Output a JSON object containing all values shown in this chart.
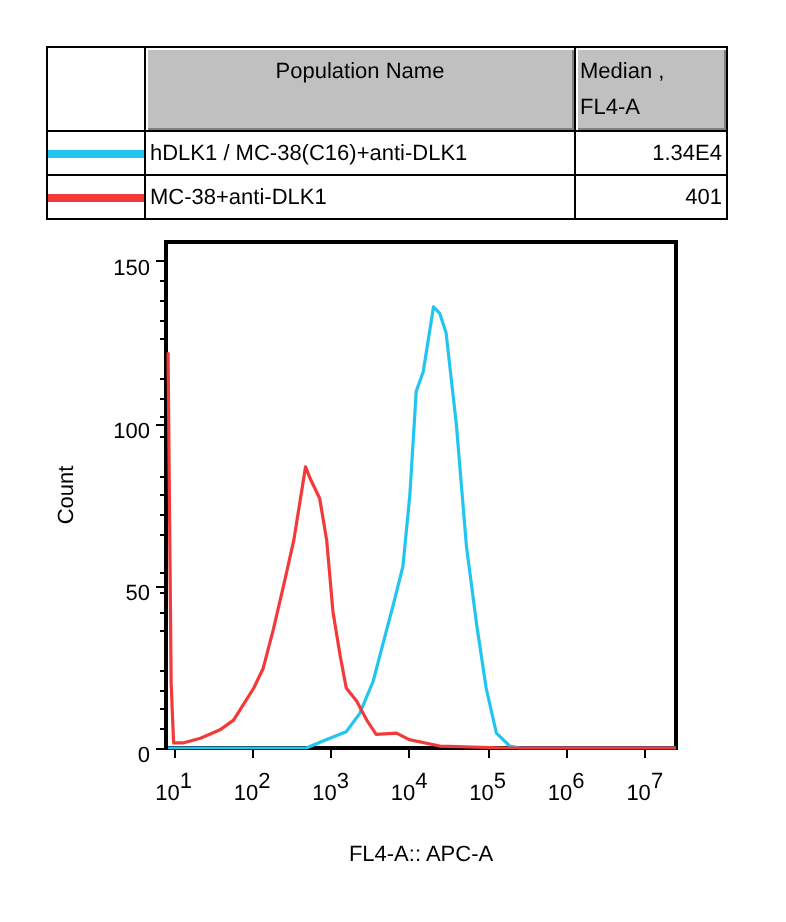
{
  "chart_data": {
    "type": "line",
    "xlabel": "FL4-A:: APC-A",
    "ylabel": "Count",
    "legend": "top",
    "legend_title": "Population Name",
    "annotations": [
      "Median ,\nFL4-A",
      "1.34E4",
      "401"
    ],
    "log": "x",
    "xlim": [
      8,
      25000000
    ],
    "ylim": [
      0,
      156
    ],
    "xticks": [
      {
        "value": 10,
        "label": "10$^{1}$"
      },
      {
        "value": 100,
        "label": "10$^{2}$"
      },
      {
        "value": 1000,
        "label": "10$^{3}$"
      },
      {
        "value": 10000,
        "label": "10$^{4}$"
      },
      {
        "value": 100000,
        "label": "10$^{5}$"
      },
      {
        "value": 1000000,
        "label": "10$^{6}$"
      },
      {
        "value": 10000000,
        "label": "10$^{7}$"
      }
    ],
    "yticks": [
      0,
      50,
      100,
      150
    ],
    "grid": false,
    "marker": "none",
    "line_style": "solid",
    "series": [
      {
        "name": "hDLK1 / MC-38(C16)+anti-DLK1",
        "color": "#22c4f0",
        "x": [
          8.5,
          490,
          890,
          1580,
          2340,
          3470,
          4680,
          6310,
          8320,
          10200,
          12300,
          15100,
          20400,
          24500,
          29500,
          39800,
          53700,
          72400,
          95500,
          129000,
          191000,
          257000,
          25000000
        ],
        "values": [
          0,
          0,
          2.6,
          5,
          10.6,
          20.5,
          32.5,
          44.4,
          56,
          78,
          110,
          116,
          136,
          134,
          128,
          100,
          62,
          38,
          18.5,
          4.6,
          0.6,
          0,
          0
        ]
      },
      {
        "name": "MC-38+anti-DLK1",
        "color": "#f23a3a",
        "x": [
          8.5,
          9.3,
          10,
          13.5,
          22,
          39,
          58,
          78,
          105,
          138,
          186,
          251,
          339,
          407,
          479,
          550,
          724,
          891,
          1070,
          1320,
          1580,
          2140,
          2880,
          3800,
          6900,
          10000,
          24500,
          174000,
          25000000
        ],
        "values": [
          122,
          20,
          1.6,
          1.6,
          3,
          5.6,
          8.6,
          13.5,
          18.5,
          24.5,
          36.5,
          50,
          64,
          76,
          86.7,
          83,
          77,
          64,
          42,
          28.5,
          18.5,
          14.5,
          8.6,
          4.2,
          4.6,
          2.6,
          0.6,
          0,
          0
        ]
      }
    ]
  }
}
